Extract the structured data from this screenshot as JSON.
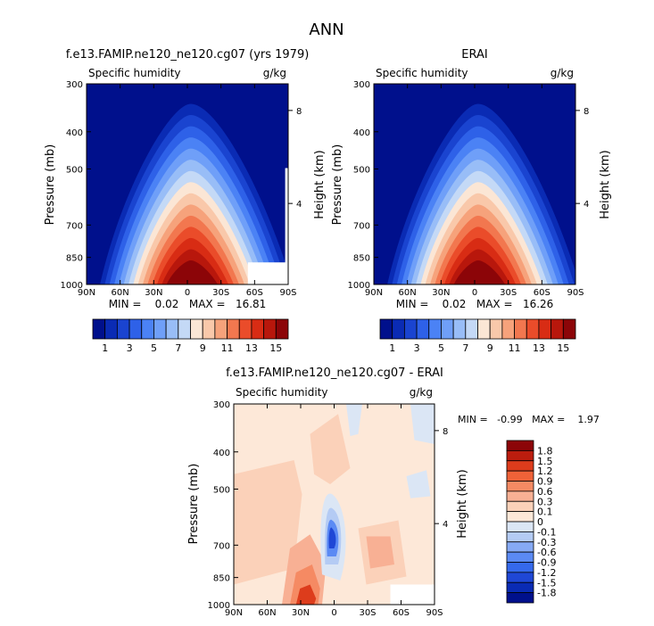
{
  "page_title": "ANN",
  "cb_labels": [
    "1",
    "3",
    "5",
    "7",
    "9",
    "11",
    "13",
    "15"
  ],
  "cb_colors": [
    "#00108c",
    "#0a2bb4",
    "#1a44d0",
    "#2e61e8",
    "#4b82f5",
    "#6f9ff8",
    "#98bdf7",
    "#c4d9f6",
    "#fbe6d5",
    "#f9c8aa",
    "#f6a27b",
    "#f2774f",
    "#ea4c2a",
    "#d82c14",
    "#b8170c",
    "#8c0508"
  ],
  "diff_colors": [
    "#00108c",
    "#0a2bb4",
    "#1f47d6",
    "#3569ec",
    "#5b8af4",
    "#86aaf5",
    "#b4cbf4",
    "#dbe6f5",
    "#fde8d8",
    "#fbd1b9",
    "#f8b094",
    "#f58a63",
    "#ef6238",
    "#dd3c1c",
    "#bb1d0e",
    "#8c0508"
  ],
  "chart_data": [
    {
      "type": "heatmap",
      "title": "f.e13.FAMIP.ne120_ne120.cg07 (yrs 1979)",
      "left_label": "Specific humidity",
      "right_label": "g/kg",
      "ylabel": "Pressure (mb)",
      "ylabel_right": "Height (km)",
      "x_ticks": [
        "90N",
        "60N",
        "30N",
        "0",
        "30S",
        "60S",
        "90S"
      ],
      "y_ticks": [
        "300",
        "400",
        "500",
        "700",
        "850",
        "1000"
      ],
      "y_right_ticks": [
        "8",
        "4"
      ],
      "stats": "MIN =    0.02   MAX =   16.81",
      "levels": [
        1,
        2,
        3,
        4,
        5,
        6,
        7,
        8,
        9,
        10,
        11,
        12,
        13,
        14,
        15
      ],
      "peak_latitude": 3,
      "max": 16.81,
      "min": 0.02
    },
    {
      "type": "heatmap",
      "title": "ERAI",
      "left_label": "Specific humidity",
      "right_label": "g/kg",
      "ylabel": "Pressure (mb)",
      "ylabel_right": "Height (km)",
      "x_ticks": [
        "90N",
        "60N",
        "30N",
        "0",
        "30S",
        "60S",
        "90S"
      ],
      "y_ticks": [
        "300",
        "400",
        "500",
        "700",
        "850",
        "1000"
      ],
      "y_right_ticks": [
        "8",
        "4"
      ],
      "stats": "MIN =    0.02   MAX =   16.26",
      "levels": [
        1,
        2,
        3,
        4,
        5,
        6,
        7,
        8,
        9,
        10,
        11,
        12,
        13,
        14,
        15
      ],
      "peak_latitude": 3,
      "max": 16.26,
      "min": 0.02
    },
    {
      "type": "heatmap",
      "title": "f.e13.FAMIP.ne120_ne120.cg07 - ERAI",
      "left_label": "Specific humidity",
      "right_label": "g/kg",
      "ylabel": "Pressure (mb)",
      "ylabel_right": "Height (km)",
      "x_ticks": [
        "90N",
        "60N",
        "30N",
        "0",
        "30S",
        "60S",
        "90S"
      ],
      "y_ticks": [
        "300",
        "400",
        "500",
        "700",
        "850",
        "1000"
      ],
      "y_right_ticks": [
        "8",
        "4"
      ],
      "stats": "MIN =   -0.99   MAX =    1.97",
      "levels": [
        "1.8",
        "1.5",
        "1.2",
        "0.9",
        "0.6",
        "0.3",
        "0.1",
        "0",
        "-0.1",
        "-0.3",
        "-0.6",
        "-0.9",
        "-1.2",
        "-1.5",
        "-1.8"
      ],
      "min": -0.99,
      "max": 1.97
    }
  ]
}
